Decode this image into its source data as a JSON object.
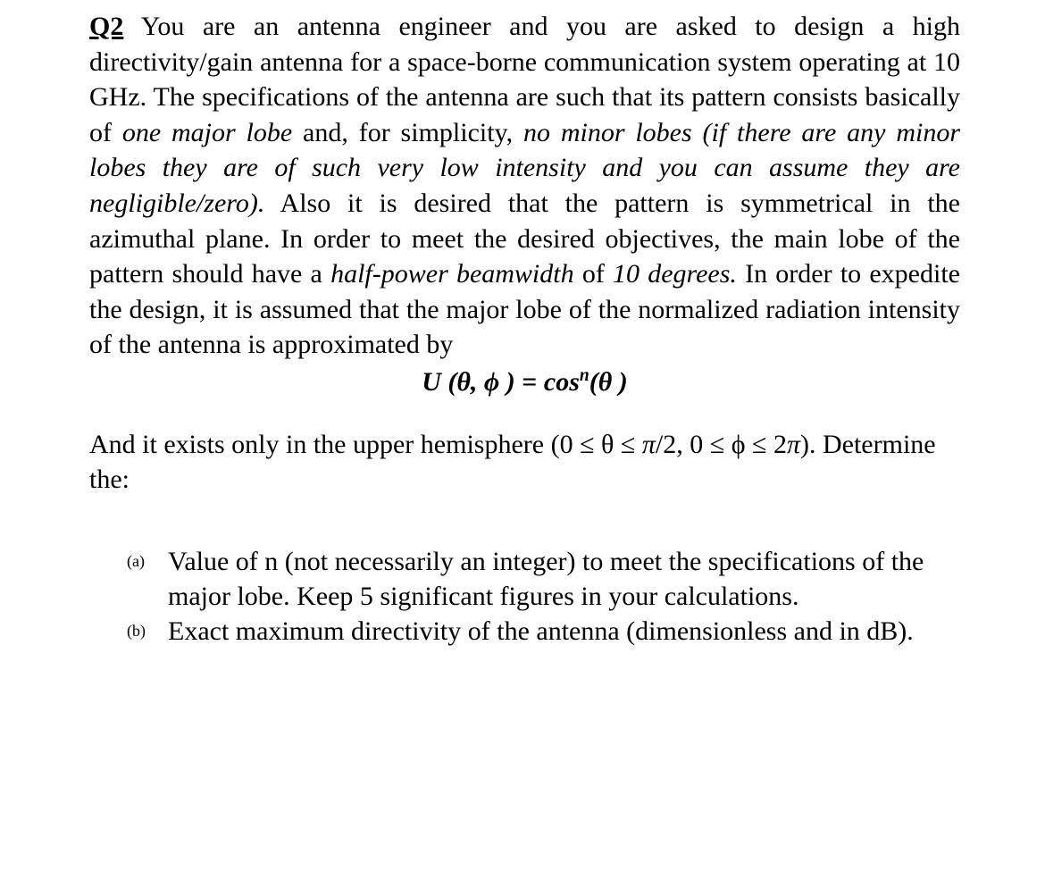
{
  "question": {
    "label": "Q2",
    "text_before_italic1": " You are an antenna engineer and you are asked to design a high directivity/gain antenna for a space-borne communication system operating at 10 GHz. The specifications of the antenna are such that its pattern consists basically of ",
    "italic1": "one major lobe",
    "text_mid1": " and, for simplicity, ",
    "italic2": "no minor lobes (if there are any minor lobes they are of such very low intensity and you can assume they are negligible/zero).",
    "text_mid2": " Also it is desired that the pattern is symmetrical in the azimuthal plane. In order to meet the desired objectives, the main lobe of the pattern should have a ",
    "italic3": "half-power beamwidth",
    "text_mid3": " of ",
    "italic4": "10 degrees.",
    "text_after": " In order to expedite the design, it is assumed that the major lobe of the normalized radiation intensity of the antenna is approximated by",
    "formula": {
      "lhs": "U (θ, ϕ ) ",
      "eq": "= ",
      "rhs": "cos",
      "sup": "n",
      "arg": "(θ )"
    },
    "follow_before": "And it exists only in the upper hemisphere (0 ≤ θ ≤ ",
    "follow_pi2": "π",
    "follow_mid": "/2, 0 ≤ ϕ ≤ 2",
    "follow_pi": "π",
    "follow_after": "). Determine the:"
  },
  "parts": [
    {
      "label": "(a)",
      "text": "Value of n (not necessarily an integer) to meet the specifications of the major lobe. Keep 5 significant figures in your calculations."
    },
    {
      "label": "(b)",
      "text": "Exact maximum directivity of the antenna (dimensionless and in dB)."
    }
  ]
}
